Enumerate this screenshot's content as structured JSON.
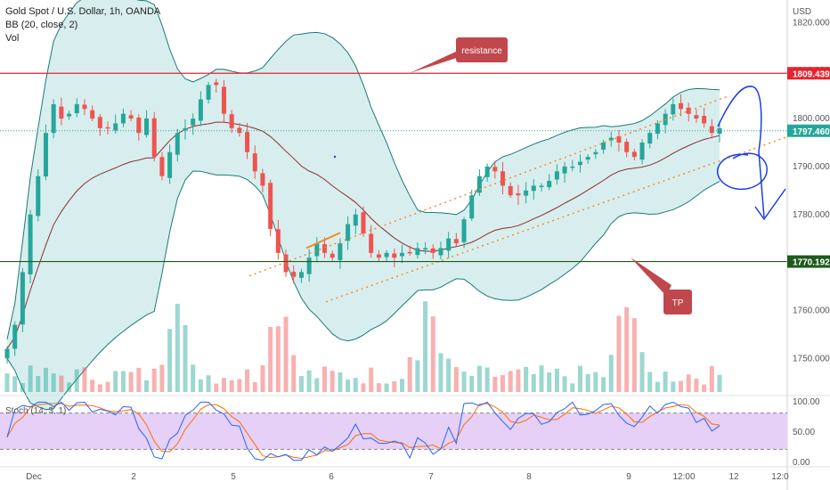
{
  "legend": {
    "title": "Gold Spot / U.S. Dollar, 1h, OANDA",
    "indicator_bb": "BB (20, close, 2)",
    "indicator_vol": "Vol",
    "indicator_stoch": "Stoch (14, 3, 1)"
  },
  "colors": {
    "up": "#26a69a",
    "down": "#ef5350",
    "bb_line": "#1b7a78",
    "bb_fill": "#d8eeee",
    "basis": "#8b2e2e",
    "resistance": "#e8232d",
    "tp": "#1f5a1f",
    "channel": "#f08c2d",
    "stoch_band": "#e6d0f7",
    "stoch_k": "#2962ff",
    "stoch_d": "#ff6d00",
    "drawing": "#1a3ee8",
    "note_bg": "#c0474b"
  },
  "chart_data": [
    {
      "type": "candlestick",
      "title": "Gold Spot / U.S. Dollar, 1h, OANDA",
      "xlabel": "",
      "ylabel": "USD",
      "x_ticks": [
        "Dec",
        "2",
        "5",
        "6",
        "7",
        "8",
        "9",
        "12:00",
        "12",
        "12:0"
      ],
      "y_ticks": [
        1750,
        1760,
        1770,
        1780,
        1790,
        1800,
        1810,
        1820
      ],
      "ylim": [
        1743,
        1821
      ],
      "price_tags": {
        "resistance": 1809.439,
        "last": 1797.46,
        "tp": 1770.192
      },
      "price_tags_text": {
        "resistance": "1809.439",
        "last": "1797.460",
        "tp": "1770.192"
      },
      "axis_unit": "USD",
      "grid": false,
      "annotations": {
        "resistance": "resistance",
        "tp": "TP"
      },
      "close_path": [
        1752,
        1757,
        1768,
        1780,
        1788,
        1797,
        1803,
        1800,
        1801,
        1803,
        1802,
        1800,
        1798,
        1798,
        1799,
        1801,
        1800,
        1797,
        1800,
        1792,
        1788,
        1793,
        1797,
        1798,
        1800,
        1804,
        1807,
        1807,
        1801,
        1798,
        1797,
        1793,
        1789,
        1786,
        1777,
        1772,
        1768,
        1767,
        1768,
        1771,
        1774,
        1772,
        1771,
        1774,
        1778,
        1780,
        1776,
        1772,
        1771,
        1772,
        1771,
        1772,
        1772,
        1773,
        1773,
        1772,
        1773,
        1775,
        1774,
        1779,
        1784,
        1788,
        1790,
        1789,
        1786,
        1784,
        1784,
        1785,
        1786,
        1786,
        1787,
        1789,
        1790,
        1790,
        1791,
        1792,
        1793,
        1795,
        1796,
        1795,
        1793,
        1792,
        1795,
        1797,
        1799,
        1801,
        1803,
        1802,
        1801,
        1800,
        1799,
        1797,
        1798
      ],
      "bollinger": {
        "period": 20,
        "stdev": 2,
        "source": "close"
      }
    },
    {
      "type": "bar",
      "title": "Vol",
      "ylabel": "",
      "note": "volume histogram, bars colored by candle direction",
      "peaks_at_fraction": [
        0.24,
        0.38,
        0.59,
        0.87
      ]
    },
    {
      "type": "line",
      "title": "Stoch (14, 3, 1)",
      "y_ticks": [
        "100.00",
        "50.00",
        "0.00"
      ],
      "ylim": [
        0,
        100
      ],
      "bands": [
        20,
        80
      ],
      "series": [
        {
          "name": "%K"
        },
        {
          "name": "%D"
        }
      ]
    }
  ]
}
